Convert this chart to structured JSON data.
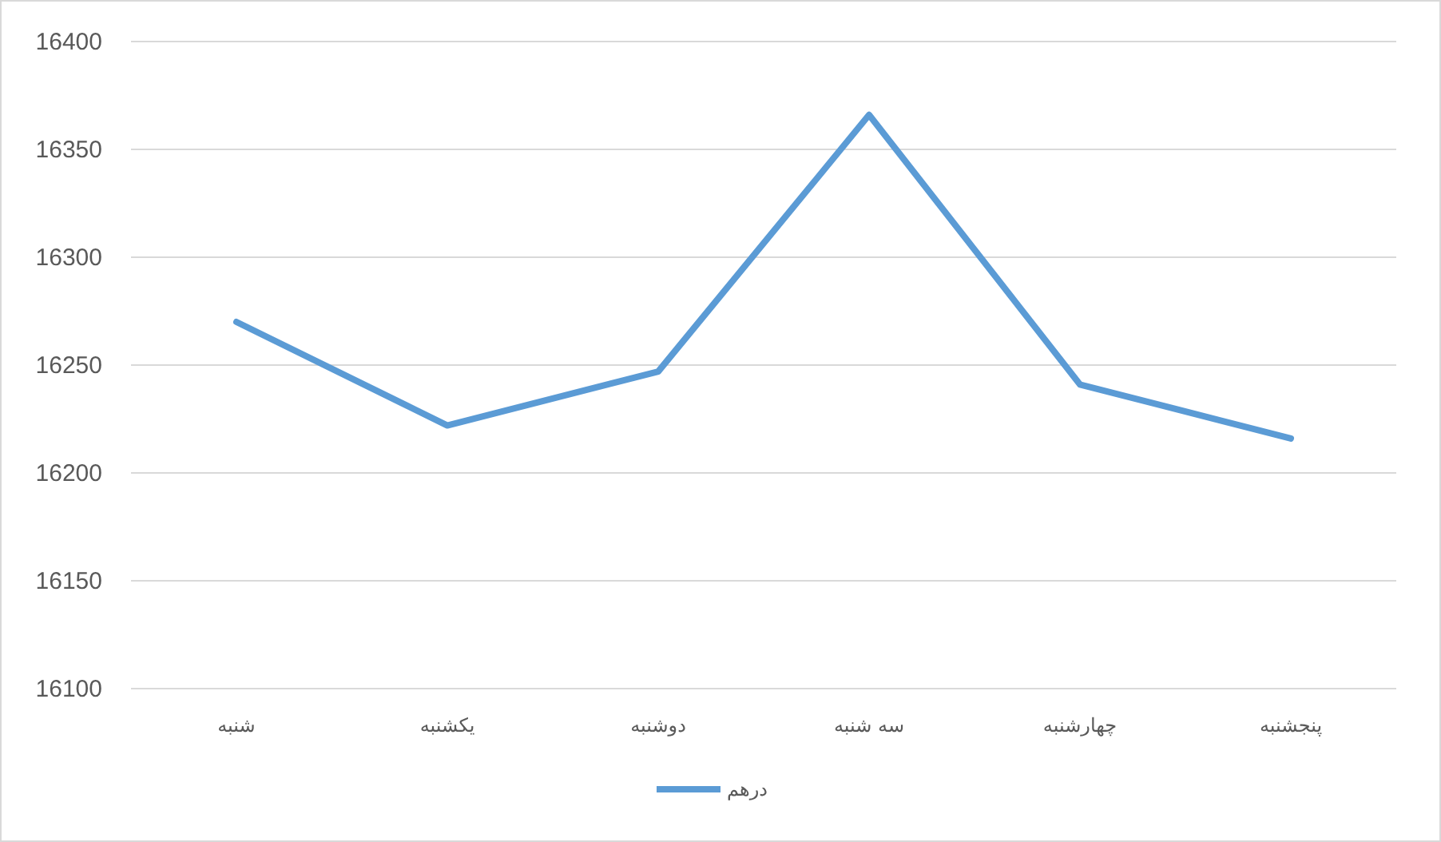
{
  "chart_data": {
    "type": "line",
    "categories": [
      "شنبه",
      "یکشنبه",
      "دوشنبه",
      "سه شنبه",
      "چهارشنبه",
      "پنجشنبه"
    ],
    "series": [
      {
        "name": "درهم",
        "color": "#5b9bd5",
        "values": [
          16270,
          16222,
          16247,
          16366,
          16241,
          16216
        ]
      }
    ],
    "ylim": [
      16100,
      16400
    ],
    "yticks": [
      16100,
      16150,
      16200,
      16250,
      16300,
      16350,
      16400
    ],
    "grid": "y",
    "legend": "bottom",
    "marker": "none",
    "line_style": "solid"
  }
}
